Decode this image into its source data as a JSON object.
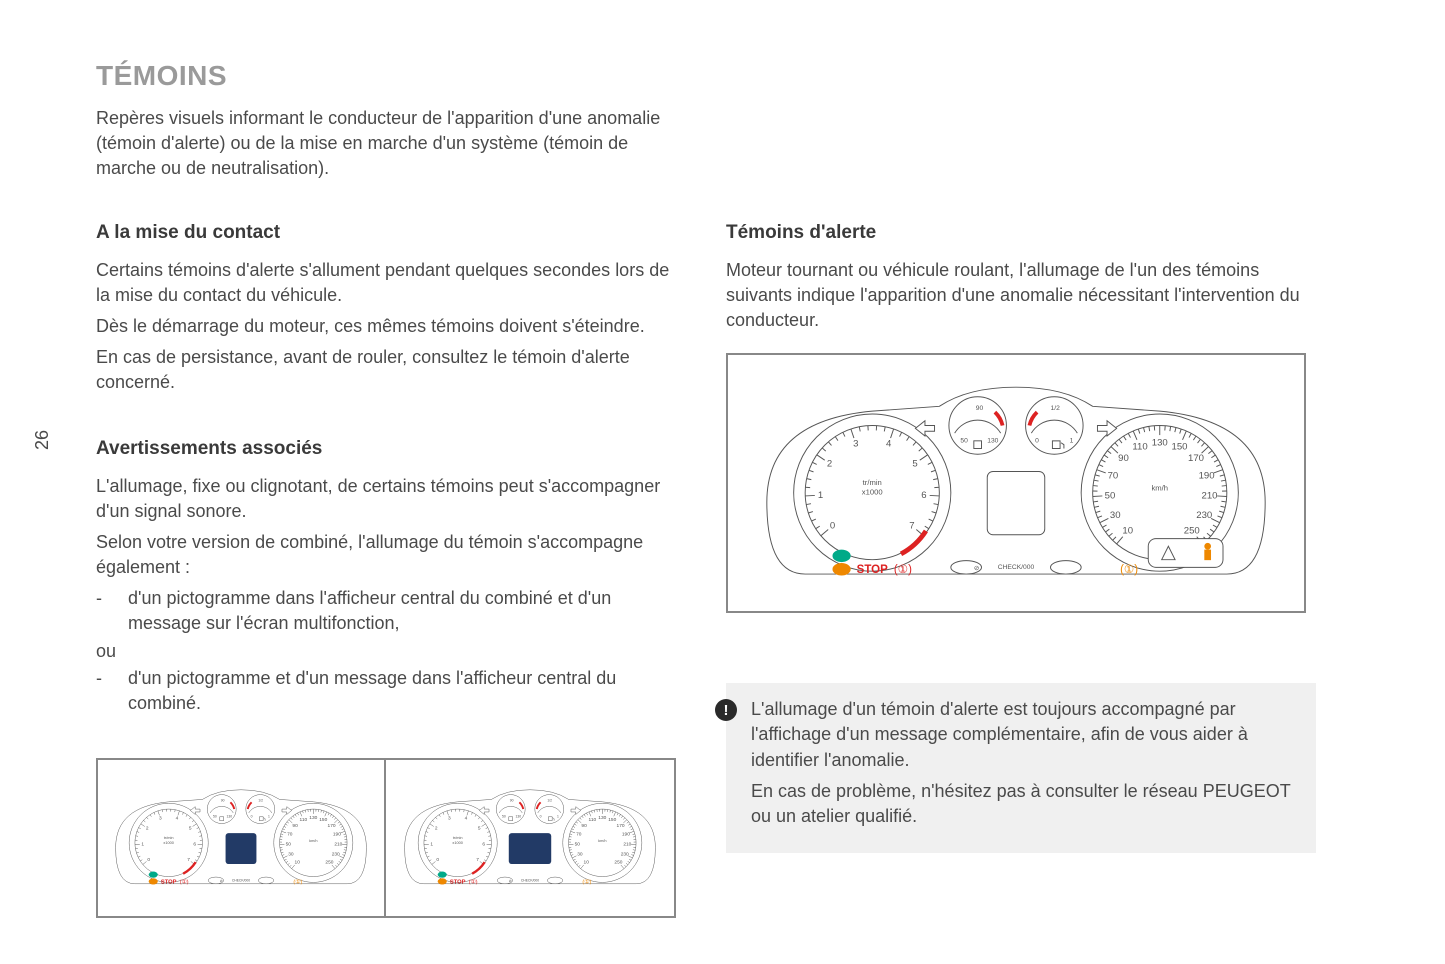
{
  "page_number": "26",
  "title": "TÉMOINS",
  "intro": "Repères visuels informant le conducteur de l'apparition d'une anomalie (témoin d'alerte) ou de la mise en marche d'un système (témoin de marche ou de neutralisation).",
  "left_col": {
    "sec1": {
      "heading": "A la mise du contact",
      "p1": "Certains témoins d'alerte s'allument pendant quelques secondes lors de la mise du contact du véhicule.",
      "p2": "Dès le démarrage du moteur, ces mêmes témoins doivent s'éteindre.",
      "p3": "En cas de persistance, avant de rouler, consultez le témoin d'alerte concerné."
    },
    "sec2": {
      "heading": "Avertissements associés",
      "p1": "L'allumage, fixe ou clignotant, de certains témoins peut s'accompagner d'un signal sonore.",
      "p2": "Selon votre version de combiné, l'allumage du témoin s'accompagne également :",
      "b1": "d'un pictogramme dans l'afficheur central du combiné et d'un message sur l'écran multifonction,",
      "ou": "ou",
      "b2": "d'un pictogramme et d'un message dans l'afficheur central du combiné."
    }
  },
  "right_col": {
    "sec1": {
      "heading": "Témoins d'alerte",
      "p1": "Moteur tournant ou véhicule roulant, l'allumage de l'un des témoins suivants indique l'apparition d'une anomalie nécessitant l'intervention du conducteur."
    },
    "info": {
      "p1": "L'allumage d'un témoin d'alerte est toujours accompagné par l'affichage d'un message complémentaire, afin de vous aider à identifier l'anomalie.",
      "p2": "En cas de problème, n'hésitez pas à consulter le réseau PEUGEOT ou un atelier qualifié."
    }
  },
  "cluster": {
    "tach": {
      "labels": [
        "0",
        "1",
        "2",
        "3",
        "4",
        "5",
        "6",
        "7"
      ],
      "unit_top": "tr/min",
      "unit_bottom": "x1000",
      "redline_from": 6
    },
    "speedo": {
      "labels": [
        "10",
        "30",
        "50",
        "70",
        "90",
        "110",
        "130",
        "150",
        "170",
        "190",
        "210",
        "230",
        "250"
      ],
      "unit": "km/h"
    },
    "temp": {
      "min": "50",
      "max": "130",
      "mid": "90"
    },
    "fuel": {
      "min": "0",
      "max": "1",
      "mid": "1/2"
    },
    "stop_label": "STOP",
    "check_label": "CHECK/000",
    "colors": {
      "outline": "#555555",
      "red": "#dd2222",
      "green": "#00aa88",
      "orange": "#ee8800",
      "screen_dark": "#223a66",
      "background": "#ffffff"
    }
  }
}
